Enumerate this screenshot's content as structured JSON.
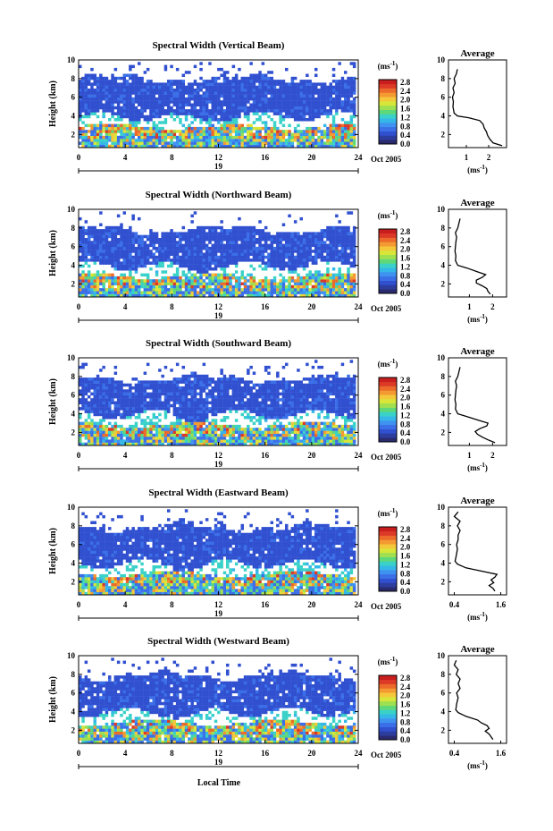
{
  "colorbar": {
    "unit": "(ms",
    "unit_exp": "-1",
    "unit_close": ")",
    "ticks": [
      "0.0",
      "0.4",
      "0.8",
      "1.2",
      "1.6",
      "2.0",
      "2.4",
      "2.8"
    ],
    "colors": [
      "#2a2a6e",
      "#2d3d9e",
      "#3050d0",
      "#3a6fe8",
      "#3f93f0",
      "#35b8e8",
      "#3ad2c8",
      "#5fd87a",
      "#9fe050",
      "#d8e63a",
      "#f4c83a",
      "#f49a32",
      "#ec6a2a",
      "#dc3a26",
      "#c81e1e"
    ]
  },
  "average_label": {
    "unit": "(ms",
    "unit_exp": "-1",
    "unit_close": ")"
  },
  "x_axis": {
    "label": "Local Time",
    "ticks": [
      0,
      4,
      8,
      12,
      16,
      20,
      24
    ],
    "day": "19",
    "month_year": "Oct 2005"
  },
  "y_axis": {
    "label": "Height (km)",
    "ticks": [
      2,
      4,
      6,
      8,
      10
    ],
    "ylim": [
      0.6,
      10
    ]
  },
  "chart_data": [
    {
      "type": "heatmap",
      "title": "Spectral Width (Vertical Beam)",
      "average_title": "Average",
      "average_ticks": [
        1,
        2
      ],
      "average_xlim": [
        0.2,
        2.8
      ],
      "average_profile": {
        "heights": [
          0.8,
          1.1,
          1.5,
          1.9,
          2.3,
          2.7,
          3.1,
          3.5,
          3.8,
          4.0,
          4.3,
          5.0,
          5.5,
          6.0,
          6.5,
          7.0,
          7.5,
          8.0,
          8.5,
          9.0
        ],
        "values": [
          2.6,
          2.2,
          2.05,
          1.95,
          1.9,
          1.8,
          1.75,
          1.6,
          1.1,
          0.6,
          0.45,
          0.4,
          0.42,
          0.38,
          0.45,
          0.4,
          0.5,
          0.45,
          0.55,
          0.6
        ]
      }
    },
    {
      "type": "heatmap",
      "title": "Spectral Width (Northward Beam)",
      "average_title": "Average",
      "average_ticks": [
        1,
        2
      ],
      "average_xlim": [
        0.1,
        2.6
      ],
      "average_profile": {
        "heights": [
          0.9,
          1.2,
          1.5,
          1.8,
          2.1,
          2.4,
          2.7,
          3.0,
          3.3,
          3.7,
          4.0,
          4.5,
          5.0,
          5.5,
          6.0,
          6.5,
          7.0,
          7.5,
          8.0,
          8.5,
          9.0
        ],
        "values": [
          1.9,
          1.8,
          1.75,
          1.55,
          1.3,
          1.3,
          1.55,
          1.7,
          1.35,
          0.9,
          0.5,
          0.4,
          0.42,
          0.38,
          0.4,
          0.42,
          0.45,
          0.4,
          0.5,
          0.55,
          0.6
        ]
      }
    },
    {
      "type": "heatmap",
      "title": "Spectral Width (Southward Beam)",
      "average_title": "Average",
      "average_ticks": [
        1,
        2
      ],
      "average_xlim": [
        0.1,
        2.6
      ],
      "average_profile": {
        "heights": [
          0.9,
          1.2,
          1.5,
          1.8,
          2.1,
          2.4,
          2.7,
          3.0,
          3.3,
          3.7,
          4.0,
          4.5,
          5.0,
          5.5,
          6.0,
          6.5,
          7.0,
          7.5,
          8.0,
          8.5,
          9.0
        ],
        "values": [
          2.1,
          1.8,
          1.55,
          1.35,
          1.25,
          1.45,
          1.75,
          1.8,
          1.4,
          0.9,
          0.5,
          0.4,
          0.42,
          0.38,
          0.4,
          0.42,
          0.45,
          0.4,
          0.5,
          0.55,
          0.6
        ]
      }
    },
    {
      "type": "heatmap",
      "title": "Spectral Width (Eastward Beam)",
      "average_title": "Average",
      "average_ticks": [
        0.4,
        1.6
      ],
      "average_xlim": [
        0.25,
        1.75
      ],
      "average_profile": {
        "heights": [
          1.0,
          1.3,
          1.6,
          1.9,
          2.2,
          2.5,
          2.8,
          3.1,
          3.5,
          3.9,
          4.2,
          4.8,
          5.5,
          6.0,
          6.5,
          7.0,
          7.5,
          8.0,
          8.5,
          9.0,
          9.5
        ],
        "values": [
          1.45,
          1.4,
          1.3,
          1.42,
          1.35,
          1.45,
          1.5,
          1.15,
          0.7,
          0.48,
          0.42,
          0.45,
          0.48,
          0.46,
          0.5,
          0.5,
          0.55,
          0.48,
          0.55,
          0.4,
          0.5
        ]
      }
    },
    {
      "type": "heatmap",
      "title": "Spectral Width (Westward Beam)",
      "average_title": "Average",
      "average_ticks": [
        0.4,
        1.6
      ],
      "average_xlim": [
        0.25,
        1.75
      ],
      "average_profile": {
        "heights": [
          1.0,
          1.3,
          1.6,
          1.9,
          2.2,
          2.5,
          2.8,
          3.1,
          3.5,
          3.9,
          4.2,
          4.8,
          5.5,
          6.0,
          6.5,
          7.0,
          7.5,
          8.0,
          8.5,
          9.0,
          9.5
        ],
        "values": [
          1.4,
          1.35,
          1.3,
          1.2,
          1.3,
          1.25,
          1.1,
          1.0,
          0.7,
          0.5,
          0.44,
          0.46,
          0.5,
          0.46,
          0.55,
          0.5,
          0.55,
          0.45,
          0.5,
          0.4,
          0.45
        ]
      }
    }
  ]
}
